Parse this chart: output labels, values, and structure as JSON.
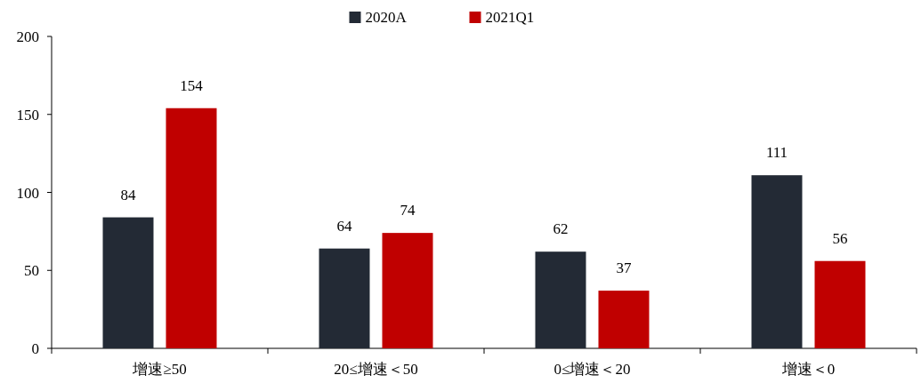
{
  "chart_data": {
    "type": "bar",
    "categories": [
      "增速≥50",
      "20≤增速＜50",
      "0≤增速＜20",
      "增速＜0"
    ],
    "series": [
      {
        "name": "2020A",
        "color": "#232a35",
        "values": [
          84,
          64,
          62,
          111
        ]
      },
      {
        "name": "2021Q1",
        "color": "#c00000",
        "values": [
          154,
          74,
          37,
          56
        ]
      }
    ],
    "ylim": [
      0,
      200
    ],
    "yticks": [
      0,
      50,
      100,
      150,
      200
    ],
    "data_labels": true,
    "legend": "top",
    "grid": false
  }
}
